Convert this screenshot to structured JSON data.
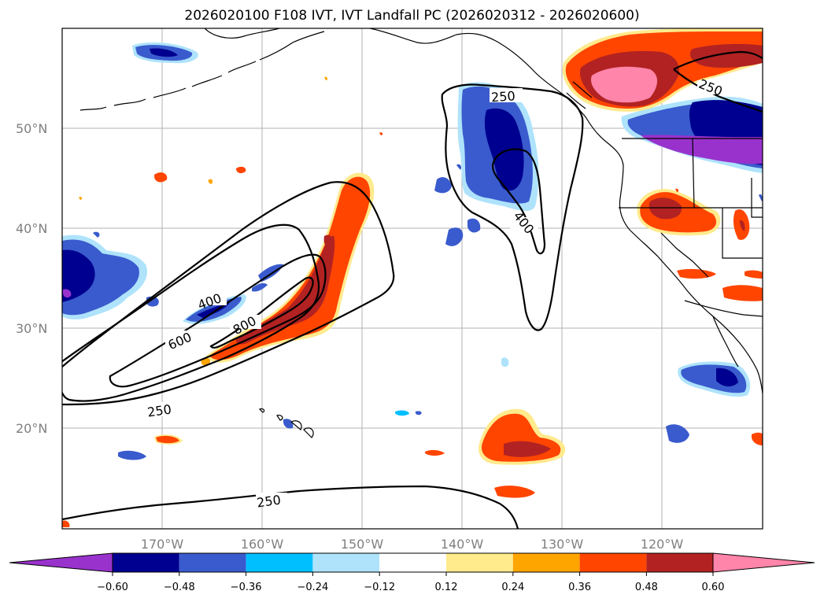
{
  "map": {
    "title": "2026020100 F108 IVT, IVT Landfall PC (2026020312 - 2026020600)",
    "lat_labels": [
      "50°N",
      "40°N",
      "30°N",
      "20°N"
    ],
    "lon_labels": [
      "170°W",
      "160°W",
      "150°W",
      "140°W",
      "130°W",
      "120°W"
    ],
    "contour_labels": [
      "250",
      "250",
      "250",
      "250",
      "400",
      "400",
      "600",
      "800"
    ]
  },
  "colorbar": {
    "ticks": [
      "−0.60",
      "−0.48",
      "−0.36",
      "−0.24",
      "−0.12",
      "0.12",
      "0.24",
      "0.36",
      "0.48",
      "0.60"
    ],
    "colors": [
      "#9932cc",
      "#000090",
      "#3a5bcd",
      "#00bfff",
      "#aee3fb",
      "#ffffff",
      "#ffea8c",
      "#ffa500",
      "#ff4500",
      "#b22222",
      "#ff85aa"
    ]
  }
}
